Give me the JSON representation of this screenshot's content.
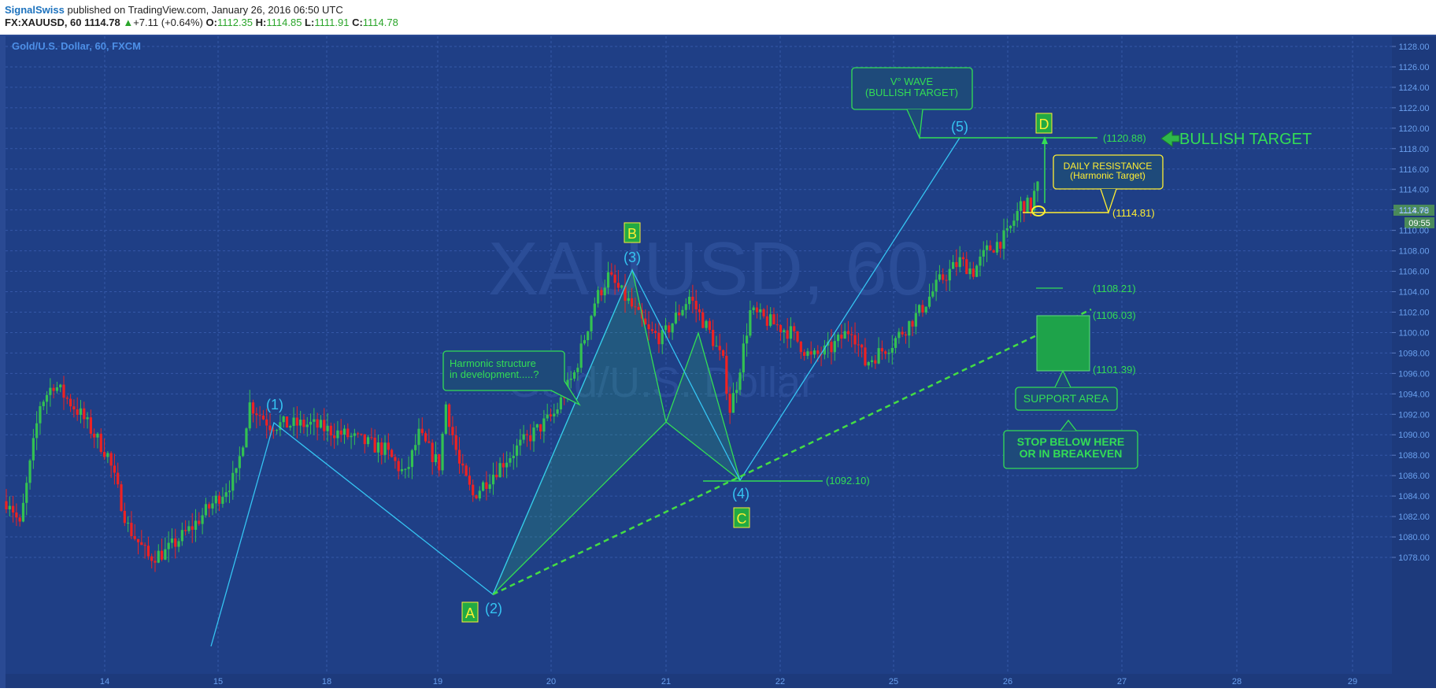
{
  "header": {
    "author": "SignalSwiss",
    "published_text": "published on TradingView.com, January 26, 2016 06:50 UTC",
    "symbol": "FX:XAUUSD, 60",
    "last": "1114.78",
    "change": "+7.11 (+0.64%)",
    "open_label": "O:",
    "open": "1112.35",
    "high_label": "H:",
    "high": "1114.85",
    "low_label": "L:",
    "low": "1111.91",
    "close_label": "C:",
    "close": "1114.78"
  },
  "chart": {
    "pane_title": "Gold/U.S. Dollar, 60, FXCM",
    "watermark": "XAUUSD, 60",
    "watermark_sub": "Gold/U.S. Dollar",
    "price_tag": "1114.78",
    "time_tag": "09:55",
    "colors": {
      "background": "#1f3f86",
      "grid": "#3558a8",
      "up": "#33c152",
      "down": "#ee2222",
      "wave": "#35c4f2",
      "harmonic": "#33dd55",
      "yellow": "#ffee33"
    }
  },
  "annotations": {
    "wave_labels": [
      "(1)",
      "(2)",
      "(3)",
      "(4)",
      "(5)"
    ],
    "harmonic_labels": [
      "A",
      "B",
      "C",
      "D"
    ],
    "callout_wave": "V° WAVE",
    "callout_wave_sub": "(BULLISH TARGET)",
    "callout_harmonic_1": "Harmonic structure",
    "callout_harmonic_2": "in development.....?",
    "callout_resistance_1": "DAILY RESISTANCE",
    "callout_resistance_2": "(Harmonic Target)",
    "support_area": "SUPPORT AREA",
    "stop_1": "STOP BELOW HERE",
    "stop_2": "OR IN BREAKEVEN",
    "bullish_target": "BULLISH TARGET",
    "level_labels": [
      "(1120.88)",
      "(1114.81)",
      "(1108.21)",
      "(1106.03)",
      "(1101.39)",
      "(1092.10)"
    ]
  },
  "chart_data": {
    "type": "candlestick",
    "title": "Gold/U.S. Dollar, 60, FXCM",
    "ylim": [
      1076.5,
      1130
    ],
    "y_ticks": [
      "1078.00",
      "1080.00",
      "1082.00",
      "1084.00",
      "1086.00",
      "1088.00",
      "1090.00",
      "1092.00",
      "1094.00",
      "1096.00",
      "1098.00",
      "1100.00",
      "1102.00",
      "1104.00",
      "1106.00",
      "1108.00",
      "1110.00",
      "1112.00",
      "1114.00",
      "1116.00",
      "1118.00",
      "1120.00",
      "1122.00",
      "1124.00",
      "1126.00",
      "1128.00"
    ],
    "x_ticks": [
      "14",
      "15",
      "18",
      "19",
      "20",
      "21",
      "22",
      "25",
      "26",
      "27",
      "28",
      "29"
    ],
    "anchors": [
      {
        "t": 0,
        "p": 1083.5
      },
      {
        "t": 1,
        "p": 1083.5
      },
      {
        "t": 4,
        "p": 1081
      },
      {
        "t": 10,
        "p": 1093
      },
      {
        "t": 14,
        "p": 1095
      },
      {
        "t": 22,
        "p": 1092
      },
      {
        "t": 30,
        "p": 1088
      },
      {
        "t": 36,
        "p": 1081
      },
      {
        "t": 42,
        "p": 1078
      },
      {
        "t": 47,
        "p": 1078.5
      },
      {
        "t": 55,
        "p": 1081
      },
      {
        "t": 63,
        "p": 1084
      },
      {
        "t": 68,
        "p": 1086
      },
      {
        "t": 72,
        "p": 1093
      },
      {
        "t": 78,
        "p": 1091
      },
      {
        "t": 90,
        "p": 1091
      },
      {
        "t": 100,
        "p": 1090
      },
      {
        "t": 112,
        "p": 1088.5
      },
      {
        "t": 118,
        "p": 1086
      },
      {
        "t": 122,
        "p": 1090
      },
      {
        "t": 128,
        "p": 1087
      },
      {
        "t": 130,
        "p": 1093
      },
      {
        "t": 134,
        "p": 1087
      },
      {
        "t": 138,
        "p": 1084
      },
      {
        "t": 146,
        "p": 1087
      },
      {
        "t": 152,
        "p": 1089
      },
      {
        "t": 162,
        "p": 1092
      },
      {
        "t": 168,
        "p": 1096
      },
      {
        "t": 174,
        "p": 1103
      },
      {
        "t": 178,
        "p": 1105.5
      },
      {
        "t": 184,
        "p": 1103
      },
      {
        "t": 190,
        "p": 1100
      },
      {
        "t": 194,
        "p": 1099.5
      },
      {
        "t": 198,
        "p": 1101.5
      },
      {
        "t": 202,
        "p": 1103.5
      },
      {
        "t": 208,
        "p": 1100
      },
      {
        "t": 212,
        "p": 1097
      },
      {
        "t": 214,
        "p": 1092.5
      },
      {
        "t": 216,
        "p": 1095
      },
      {
        "t": 220,
        "p": 1102
      },
      {
        "t": 226,
        "p": 1101
      },
      {
        "t": 232,
        "p": 1100
      },
      {
        "t": 238,
        "p": 1097.5
      },
      {
        "t": 244,
        "p": 1098.5
      },
      {
        "t": 250,
        "p": 1100.5
      },
      {
        "t": 254,
        "p": 1097
      },
      {
        "t": 262,
        "p": 1099
      },
      {
        "t": 270,
        "p": 1102
      },
      {
        "t": 276,
        "p": 1105
      },
      {
        "t": 282,
        "p": 1107
      },
      {
        "t": 286,
        "p": 1106
      },
      {
        "t": 290,
        "p": 1108
      },
      {
        "t": 296,
        "p": 1109.5
      },
      {
        "t": 300,
        "p": 1112.5
      },
      {
        "t": 303,
        "p": 1112.4
      },
      {
        "t": 305,
        "p": 1114.78
      }
    ],
    "drawings": {
      "elliott_wave": [
        {
          "t": 10,
          "p": 1098
        },
        {
          "t": 136,
          "p": 1083
        },
        {
          "t": 178,
          "p": 1110
        },
        {
          "t": 214,
          "p": 1092.1
        },
        {
          "t": 280,
          "p": 1120.88
        }
      ],
      "harmonic_points": {
        "A": {
          "t": 136,
          "p": 1083
        },
        "B": {
          "t": 178,
          "p": 1110
        },
        "C": {
          "t": 214,
          "p": 1092.1
        },
        "D": {
          "t": 302,
          "p": 1120.88
        }
      },
      "levels": {
        "target": 1120.88,
        "resistance": 1114.81,
        "level_1": 1108.21,
        "support_top": 1106.03,
        "support_bottom": 1101.39,
        "wave4": 1092.1
      },
      "trendline": [
        {
          "t": 136,
          "p": 1083
        },
        {
          "t": 320,
          "p": 1106.03
        }
      ]
    }
  }
}
